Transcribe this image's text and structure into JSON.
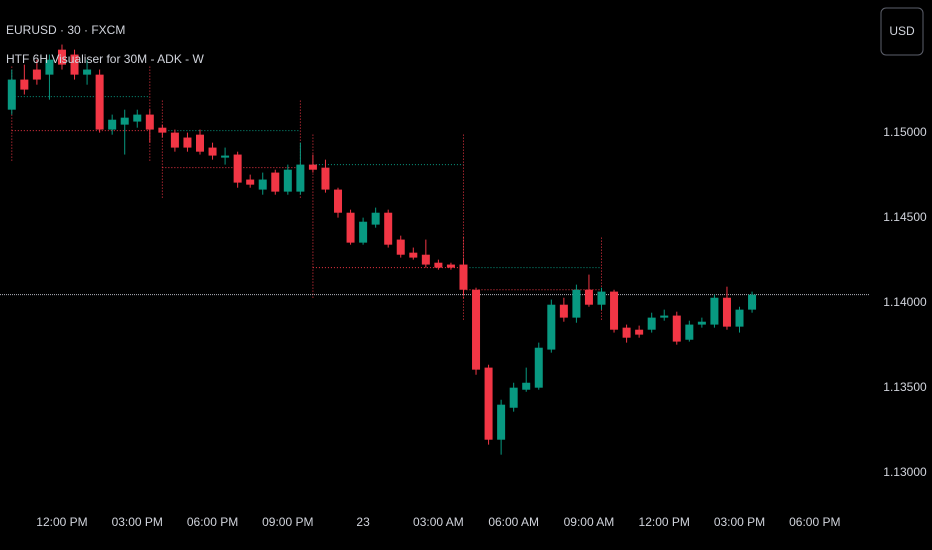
{
  "chart_data": {
    "type": "candlestick",
    "title": "EURUSD · 30 · FXCM",
    "subtitle": "HTF 6H Visualiser for 30M - ADK - W",
    "currency_button": "USD",
    "up_color": "#089981",
    "down_color": "#f23645",
    "grid": false,
    "x": [
      10,
      10.5,
      11,
      11.5,
      12,
      12.5,
      13,
      13.5,
      14,
      14.5,
      15,
      15.5,
      16,
      16.5,
      17,
      17.5,
      18,
      18.5,
      19,
      19.5,
      20,
      20.5,
      21,
      21.5,
      22,
      22.5,
      23,
      23.5,
      24,
      24.5,
      25,
      25.5,
      26,
      26.5,
      27,
      27.5,
      28,
      28.5,
      29,
      29.5,
      30,
      30.5,
      31,
      31.5,
      32,
      32.5,
      33,
      33.5,
      34,
      34.5,
      35,
      35.5,
      36,
      36.5,
      37,
      37.5,
      38,
      38.5,
      39,
      39.5
    ],
    "open": [
      1.15135,
      1.15312,
      1.15371,
      1.15341,
      1.15488,
      1.15459,
      1.15341,
      1.15341,
      1.15018,
      1.15047,
      1.15065,
      1.15106,
      1.15029,
      1.15,
      1.14971,
      1.14988,
      1.14912,
      1.14853,
      1.14871,
      1.14724,
      1.14665,
      1.14765,
      1.14653,
      1.14653,
      1.14812,
      1.14794,
      1.14665,
      1.14529,
      1.14353,
      1.14459,
      1.14529,
      1.14371,
      1.14294,
      1.14282,
      1.14235,
      1.14224,
      1.14224,
      1.14076,
      1.13618,
      1.13194,
      1.13382,
      1.13488,
      1.135,
      1.13724,
      1.13988,
      1.13912,
      1.14076,
      1.13988,
      1.14065,
      1.13853,
      1.13841,
      1.13841,
      1.13912,
      1.13924,
      1.13782,
      1.13871,
      1.13871,
      1.14029,
      1.13859,
      1.13959
    ],
    "high": [
      1.15371,
      1.154,
      1.15429,
      1.15459,
      1.15518,
      1.15488,
      1.15429,
      1.15371,
      1.15106,
      1.15135,
      1.15135,
      1.15135,
      1.15047,
      1.15018,
      1.15,
      1.15018,
      1.14941,
      1.14912,
      1.14888,
      1.14753,
      1.14765,
      1.14782,
      1.14812,
      1.14941,
      1.14871,
      1.14841,
      1.14676,
      1.14547,
      1.145,
      1.14559,
      1.14547,
      1.14394,
      1.14324,
      1.14371,
      1.14253,
      1.14235,
      1.14253,
      1.14088,
      1.13635,
      1.13429,
      1.13529,
      1.13618,
      1.13765,
      1.14018,
      1.14029,
      1.14106,
      1.14165,
      1.14088,
      1.14076,
      1.13871,
      1.13865,
      1.13941,
      1.13959,
      1.13947,
      1.13894,
      1.13912,
      1.14047,
      1.14094,
      1.13976,
      1.14065
    ],
    "low": [
      1.15106,
      1.15224,
      1.15282,
      1.15194,
      1.15371,
      1.15312,
      1.15282,
      1.15,
      1.14988,
      1.14871,
      1.15029,
      1.14941,
      1.14971,
      1.14888,
      1.14888,
      1.14871,
      1.14841,
      1.14812,
      1.14676,
      1.14676,
      1.14635,
      1.14635,
      1.14635,
      1.14635,
      1.14765,
      1.14647,
      1.145,
      1.14341,
      1.14341,
      1.14441,
      1.14324,
      1.14265,
      1.14253,
      1.14206,
      1.14194,
      1.14194,
      1.14047,
      1.13576,
      1.13165,
      1.13106,
      1.13359,
      1.13476,
      1.13488,
      1.13706,
      1.13888,
      1.13882,
      1.13976,
      1.13959,
      1.13824,
      1.13765,
      1.13794,
      1.13824,
      1.13894,
      1.13753,
      1.13771,
      1.13853,
      1.13853,
      1.13841,
      1.13824,
      1.13941
    ],
    "close": [
      1.15312,
      1.15253,
      1.15312,
      1.15429,
      1.154,
      1.15341,
      1.15371,
      1.15018,
      1.15076,
      1.15088,
      1.15106,
      1.15018,
      1.15,
      1.14912,
      1.14912,
      1.14888,
      1.14865,
      1.14865,
      1.14706,
      1.14694,
      1.14724,
      1.14653,
      1.14782,
      1.14812,
      1.14782,
      1.14665,
      1.14529,
      1.14353,
      1.14476,
      1.14529,
      1.14341,
      1.14282,
      1.14265,
      1.14224,
      1.14206,
      1.14206,
      1.14076,
      1.13606,
      1.13194,
      1.134,
      1.135,
      1.13529,
      1.13735,
      1.13988,
      1.13912,
      1.14076,
      1.13988,
      1.14065,
      1.13841,
      1.13794,
      1.13812,
      1.13912,
      1.13924,
      1.13771,
      1.13871,
      1.13888,
      1.14029,
      1.13859,
      1.13959,
      1.14047
    ],
    "htf_ranges": [
      {
        "start": 10,
        "end": 15.5,
        "high": 1.15212,
        "low": 1.15012
      },
      {
        "start": 16,
        "end": 21.5,
        "high": 1.15012,
        "low": 1.14794
      },
      {
        "start": 22,
        "end": 28,
        "high": 1.14812,
        "low": 1.14206
      },
      {
        "start": 28,
        "end": 33.5,
        "high": 1.14206,
        "low": 1.14076
      }
    ],
    "xlim": [
      9.53,
      44.2
    ],
    "ylim": [
      1.1281,
      1.1578
    ],
    "yticks": [
      {
        "value": 1.15,
        "label": "1.15000"
      },
      {
        "value": 1.145,
        "label": "1.14500"
      },
      {
        "value": 1.14,
        "label": "1.14000"
      },
      {
        "value": 1.135,
        "label": "1.13500"
      },
      {
        "value": 1.13,
        "label": "1.13000"
      }
    ],
    "xticks": [
      {
        "value": 12,
        "label": "12:00 PM"
      },
      {
        "value": 15,
        "label": "03:00 PM"
      },
      {
        "value": 18,
        "label": "06:00 PM"
      },
      {
        "value": 21,
        "label": "09:00 PM"
      },
      {
        "value": 24,
        "label": "23"
      },
      {
        "value": 27,
        "label": "03:00 AM"
      },
      {
        "value": 30,
        "label": "06:00 AM"
      },
      {
        "value": 33,
        "label": "09:00 AM"
      },
      {
        "value": 36,
        "label": "12:00 PM"
      },
      {
        "value": 39,
        "label": "03:00 PM"
      },
      {
        "value": 42,
        "label": "06:00 PM"
      }
    ]
  }
}
